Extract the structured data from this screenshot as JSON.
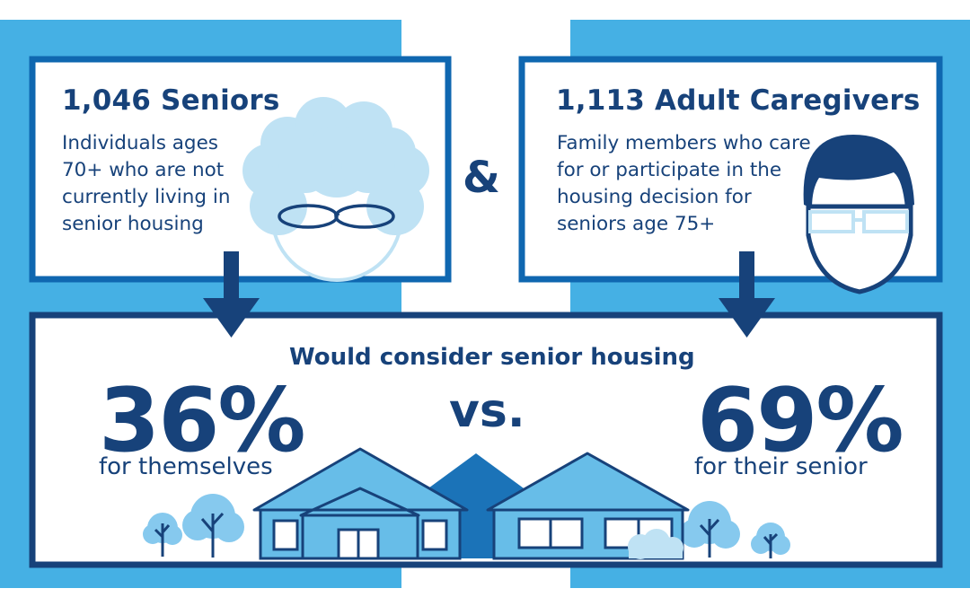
{
  "colors": {
    "light_blue_bg": "#45b0e4",
    "dark_navy": "#17427a",
    "frame_blue": "#0f67b0",
    "pale_blue": "#bfe2f4",
    "house_blue": "#67bde8",
    "roof_blue": "#1b73b8"
  },
  "seniors": {
    "title": "1,046 Seniors",
    "description_lines": [
      "Individuals ages",
      "70+ who are not",
      "currently living in",
      "senior housing"
    ]
  },
  "ampersand": "&",
  "caregivers": {
    "title": "1,113 Adult Caregivers",
    "description_lines": [
      "Family members who care",
      "for or participate in the",
      "housing decision for",
      "seniors age 75+"
    ]
  },
  "result": {
    "headline": "Would consider senior housing",
    "seniors_percent": "36%",
    "seniors_label": "for themselves",
    "versus": "vs.",
    "caregivers_percent": "69%",
    "caregivers_label": "for their senior"
  },
  "icons": [
    "senior-woman-icon",
    "caregiver-man-icon",
    "down-arrow-icon",
    "houses-illustration",
    "tree-icon",
    "bush-icon"
  ]
}
